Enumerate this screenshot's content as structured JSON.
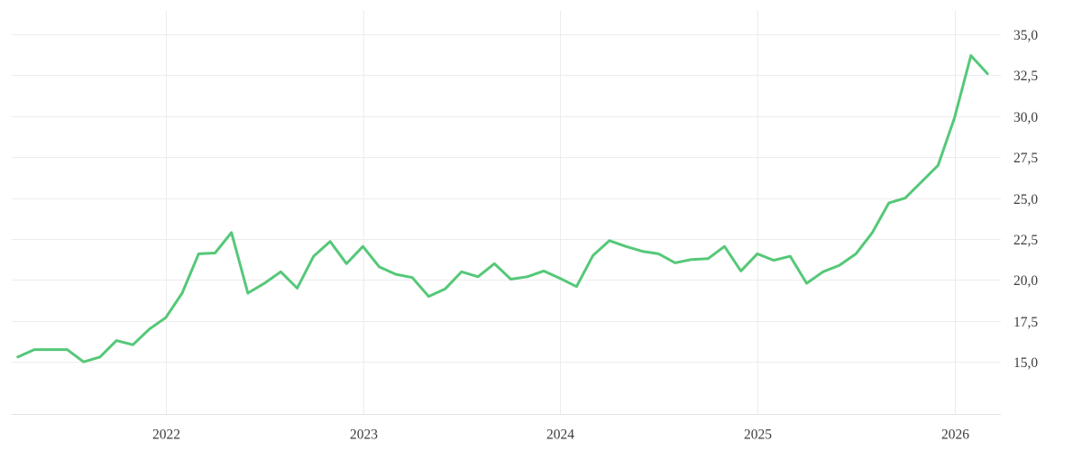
{
  "chart_data": {
    "type": "line",
    "title": "",
    "xlabel": "",
    "ylabel": "",
    "grid": true,
    "legend_position": "none",
    "y_axis_side": "right",
    "decimal_separator": ",",
    "ylim": [
      11.82,
      36.43
    ],
    "x": [
      "2021-04",
      "2021-05",
      "2021-06",
      "2021-07",
      "2021-08",
      "2021-09",
      "2021-10",
      "2021-11",
      "2021-12",
      "2022-01",
      "2022-02",
      "2022-03",
      "2022-04",
      "2022-05",
      "2022-06",
      "2022-07",
      "2022-08",
      "2022-09",
      "2022-10",
      "2022-11",
      "2022-12",
      "2023-01",
      "2023-02",
      "2023-03",
      "2023-04",
      "2023-05",
      "2023-06",
      "2023-07",
      "2023-08",
      "2023-09",
      "2023-10",
      "2023-11",
      "2023-12",
      "2024-01",
      "2024-02",
      "2024-03",
      "2024-04",
      "2024-05",
      "2024-06",
      "2024-07",
      "2024-08",
      "2024-09",
      "2024-10",
      "2024-11",
      "2024-12",
      "2025-01",
      "2025-02",
      "2025-03",
      "2025-04",
      "2025-05",
      "2025-06",
      "2025-07",
      "2025-08",
      "2025-09",
      "2025-10",
      "2025-11",
      "2025-12",
      "2026-01",
      "2026-02",
      "2026-03"
    ],
    "values": [
      15.3,
      15.75,
      15.75,
      15.75,
      15.0,
      15.3,
      16.3,
      16.05,
      17.0,
      17.7,
      19.2,
      21.6,
      21.65,
      22.9,
      19.2,
      19.8,
      20.5,
      19.5,
      21.45,
      22.35,
      21.0,
      22.05,
      20.8,
      20.35,
      20.15,
      19.0,
      19.45,
      20.5,
      20.2,
      21.0,
      20.05,
      20.2,
      20.55,
      20.1,
      19.6,
      21.5,
      22.4,
      22.05,
      21.75,
      21.6,
      21.05,
      21.25,
      21.3,
      22.05,
      20.55,
      21.6,
      21.2,
      21.45,
      19.8,
      20.5,
      20.9,
      21.6,
      22.9,
      24.7,
      25.0,
      26.0,
      27.0,
      29.9,
      33.7,
      32.6
    ],
    "x_ticks": [
      {
        "label": "2022",
        "year": 2022
      },
      {
        "label": "2023",
        "year": 2023
      },
      {
        "label": "2024",
        "year": 2024
      },
      {
        "label": "2025",
        "year": 2025
      },
      {
        "label": "2026",
        "year": 2026
      }
    ],
    "y_ticks": [
      {
        "label": "35,0",
        "value": 35.0
      },
      {
        "label": "32,5",
        "value": 32.5
      },
      {
        "label": "30,0",
        "value": 30.0
      },
      {
        "label": "27,5",
        "value": 27.5
      },
      {
        "label": "25,0",
        "value": 25.0
      },
      {
        "label": "22,5",
        "value": 22.5
      },
      {
        "label": "20,0",
        "value": 20.0
      },
      {
        "label": "17,5",
        "value": 17.5
      },
      {
        "label": "15,0",
        "value": 15.0
      }
    ],
    "colors": {
      "line": "#55c878",
      "grid": "#ececec",
      "axis": "#e2e2e2",
      "labels": "#3c3c3c",
      "background": "#ffffff"
    }
  }
}
